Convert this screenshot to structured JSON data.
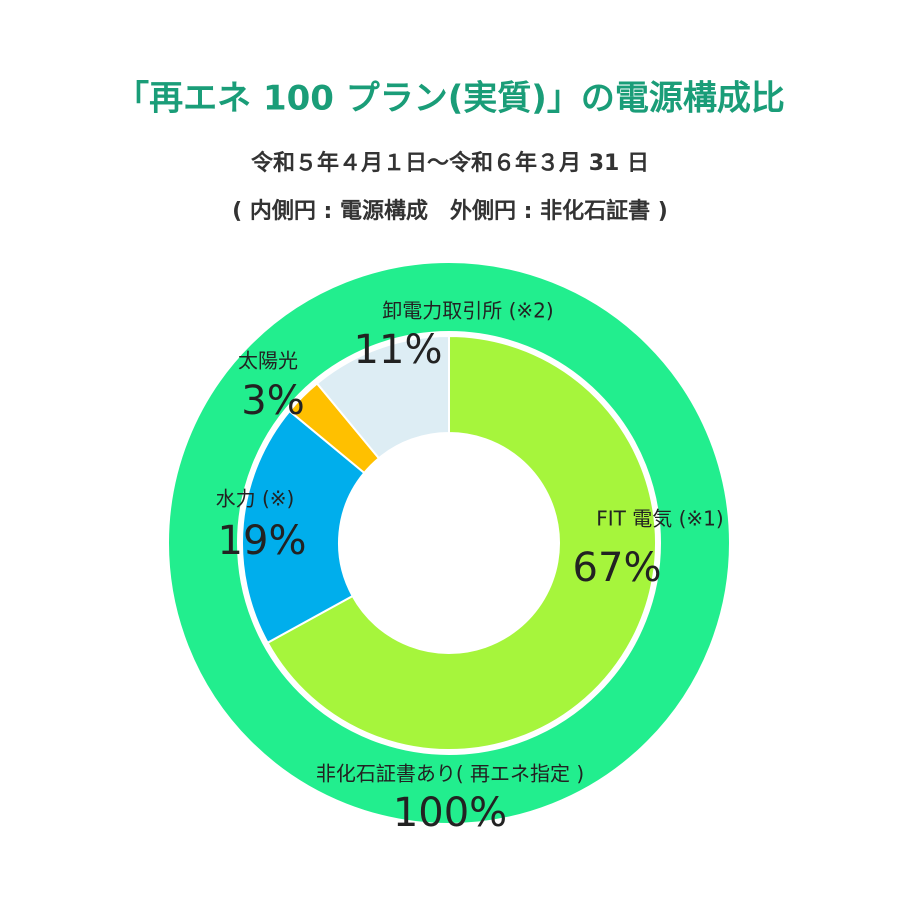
{
  "chart_data": {
    "type": "donut",
    "title": "「再エネ 100 プラン(実質)」の電源構成比",
    "subtitles": [
      "令和５年４月１日～令和６年３月 31 日",
      "( 内側円 : 電源構成　外側円 : 非化石証書 )"
    ],
    "rings": {
      "outer": {
        "name": "非化石証書あり( 再エネ指定 )",
        "value": 100,
        "value_label": "100%",
        "color": "#22ee8e"
      },
      "inner": {
        "categories": [
          "FIT 電気 (※1)",
          "水力 (※)",
          "太陽光",
          "卸電力取引所 (※2)"
        ],
        "values": [
          67,
          19,
          3,
          11
        ],
        "value_labels": [
          "67%",
          "19%",
          "3%",
          "11%"
        ],
        "colors": [
          "#a6f53c",
          "#00aeec",
          "#ffc000",
          "#ddedf4"
        ]
      }
    }
  }
}
